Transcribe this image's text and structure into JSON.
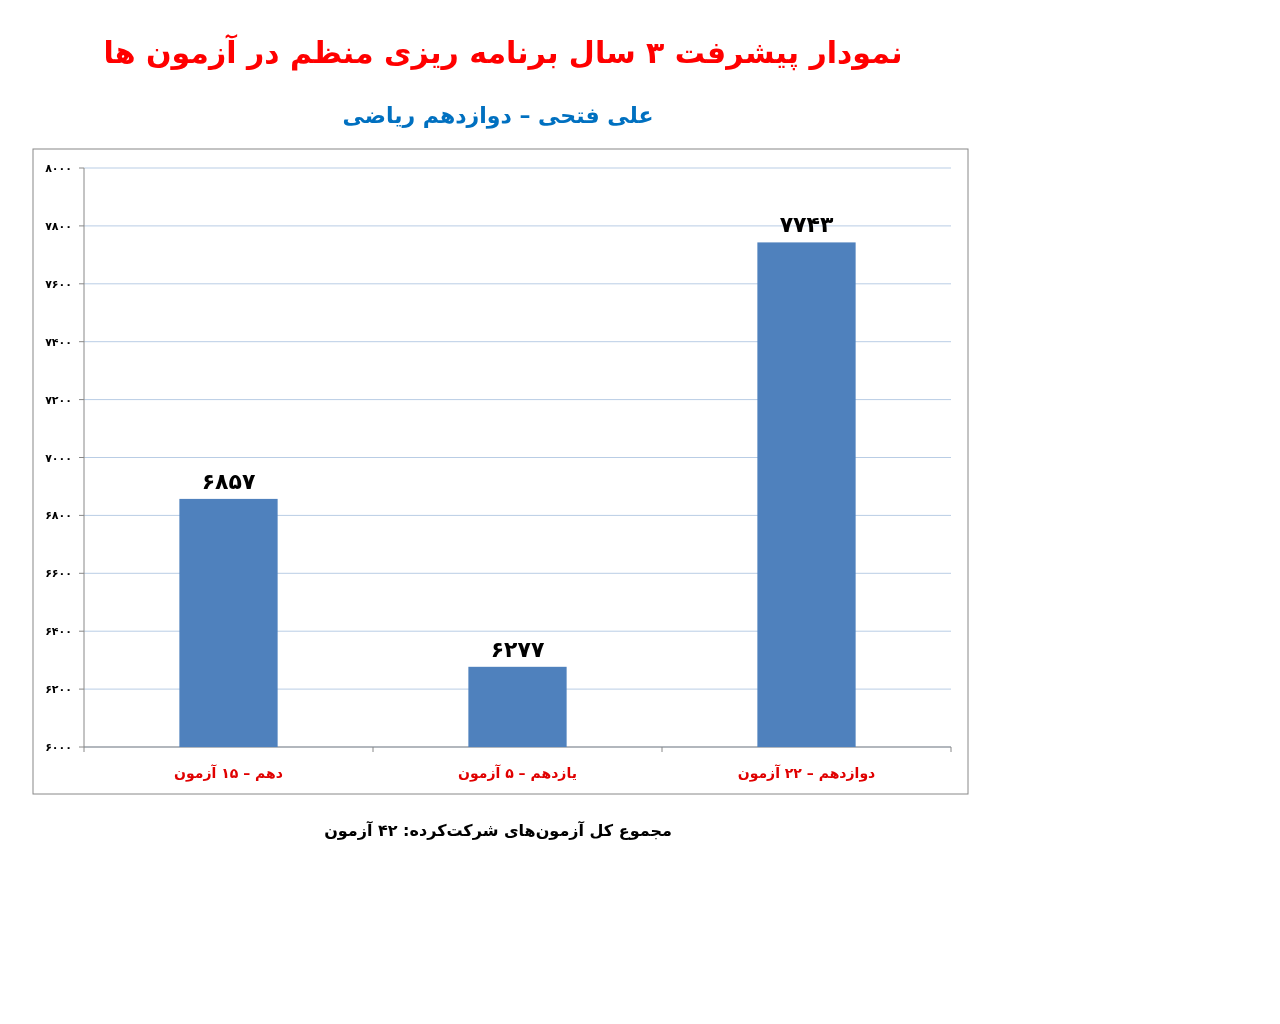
{
  "chart_data": {
    "type": "bar",
    "title": "نمودار پیشرفت ۳ سال برنامه ریزی منظم در آزمون ها",
    "subtitle": "علی فتحی – دوازدهم ریاضی",
    "categories": [
      "دهم – ۱۵ آزمون",
      "یازدهم – ۵ آزمون",
      "دوازدهم – ۲۲ آزمون"
    ],
    "values": [
      6857,
      6277,
      7743
    ],
    "value_labels": [
      "۶۸۵۷",
      "۶۲۷۷",
      "۷۷۴۳"
    ],
    "color": "#4f81bd",
    "ylim": [
      6000,
      8000
    ],
    "yticks": [
      {
        "value": 6000,
        "label": "۶۰۰۰"
      },
      {
        "value": 6200,
        "label": "۶۲۰۰"
      },
      {
        "value": 6400,
        "label": "۶۴۰۰"
      },
      {
        "value": 6600,
        "label": "۶۶۰۰"
      },
      {
        "value": 6800,
        "label": "۶۸۰۰"
      },
      {
        "value": 7000,
        "label": "۷۰۰۰"
      },
      {
        "value": 7200,
        "label": "۷۲۰۰"
      },
      {
        "value": 7400,
        "label": "۷۴۰۰"
      },
      {
        "value": 7600,
        "label": "۷۶۰۰"
      },
      {
        "value": 7800,
        "label": "۷۸۰۰"
      },
      {
        "value": 8000,
        "label": "۸۰۰۰"
      }
    ],
    "grid": true,
    "annotations": [
      "مجموع کل آزمون‌های شرکت‌کرده: ۴۲ آزمون"
    ]
  }
}
